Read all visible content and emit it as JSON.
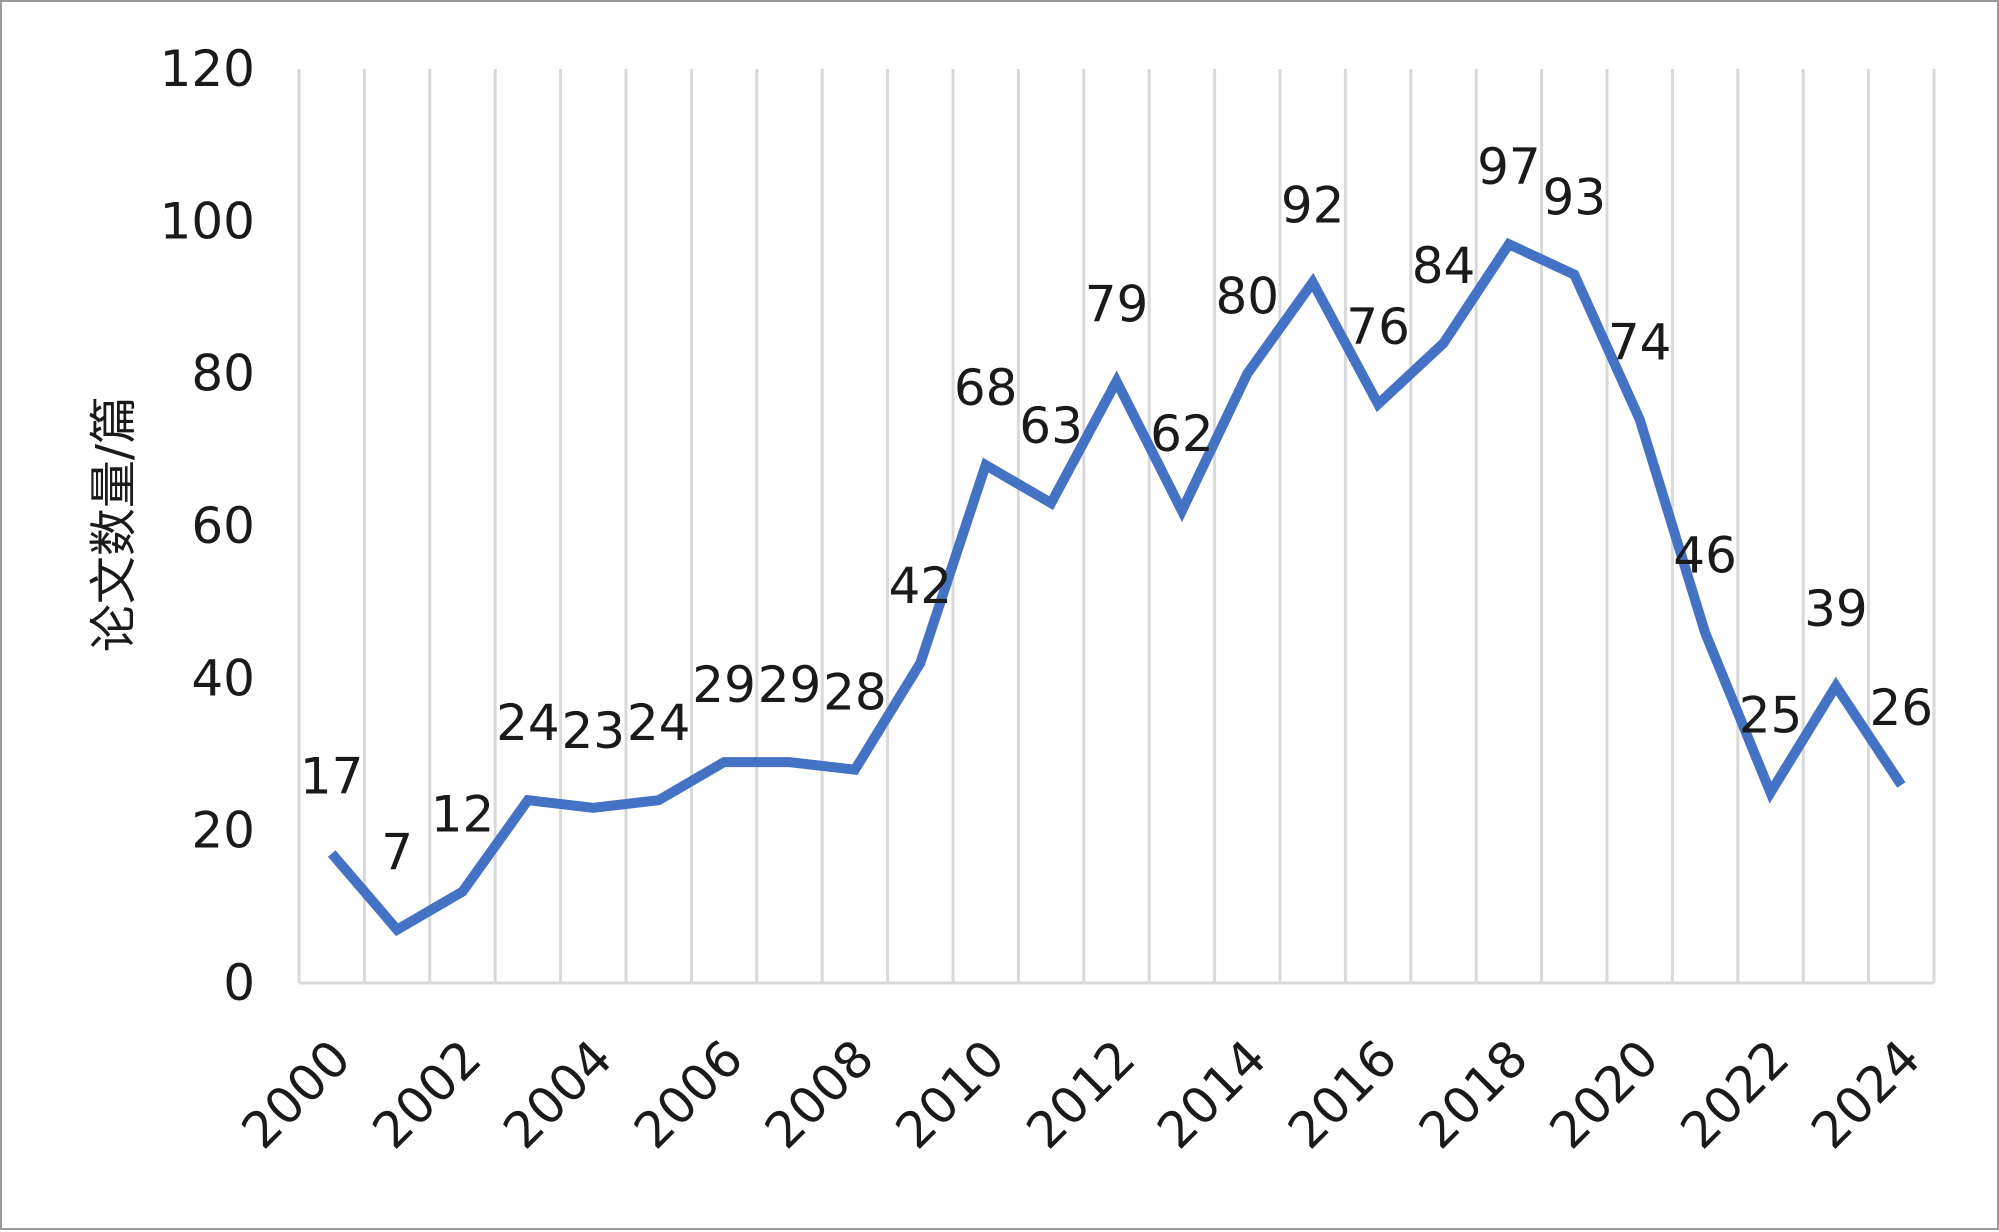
{
  "chart_data": {
    "type": "line",
    "title": "",
    "xlabel": "",
    "ylabel": "论文数量/篇",
    "ylim": [
      0,
      120
    ],
    "yticks": [
      0,
      20,
      40,
      60,
      80,
      100,
      120
    ],
    "grid": "vertical",
    "legend": "none",
    "line_color": "#4472C4",
    "grid_color": "#d9d9d9",
    "x": [
      2000,
      2001,
      2002,
      2003,
      2004,
      2005,
      2006,
      2007,
      2008,
      2009,
      2010,
      2011,
      2012,
      2013,
      2014,
      2015,
      2016,
      2017,
      2018,
      2019,
      2020,
      2021,
      2022,
      2023,
      2024
    ],
    "xtick_labels": [
      "2000",
      "2002",
      "2004",
      "2006",
      "2008",
      "2010",
      "2012",
      "2014",
      "2016",
      "2018",
      "2020",
      "2022",
      "2024"
    ],
    "series": [
      {
        "values": [
          17,
          7,
          12,
          24,
          23,
          24,
          29,
          29,
          28,
          42,
          68,
          63,
          79,
          62,
          80,
          92,
          76,
          84,
          97,
          93,
          74,
          46,
          25,
          39,
          26
        ],
        "data_labels": true
      }
    ]
  }
}
